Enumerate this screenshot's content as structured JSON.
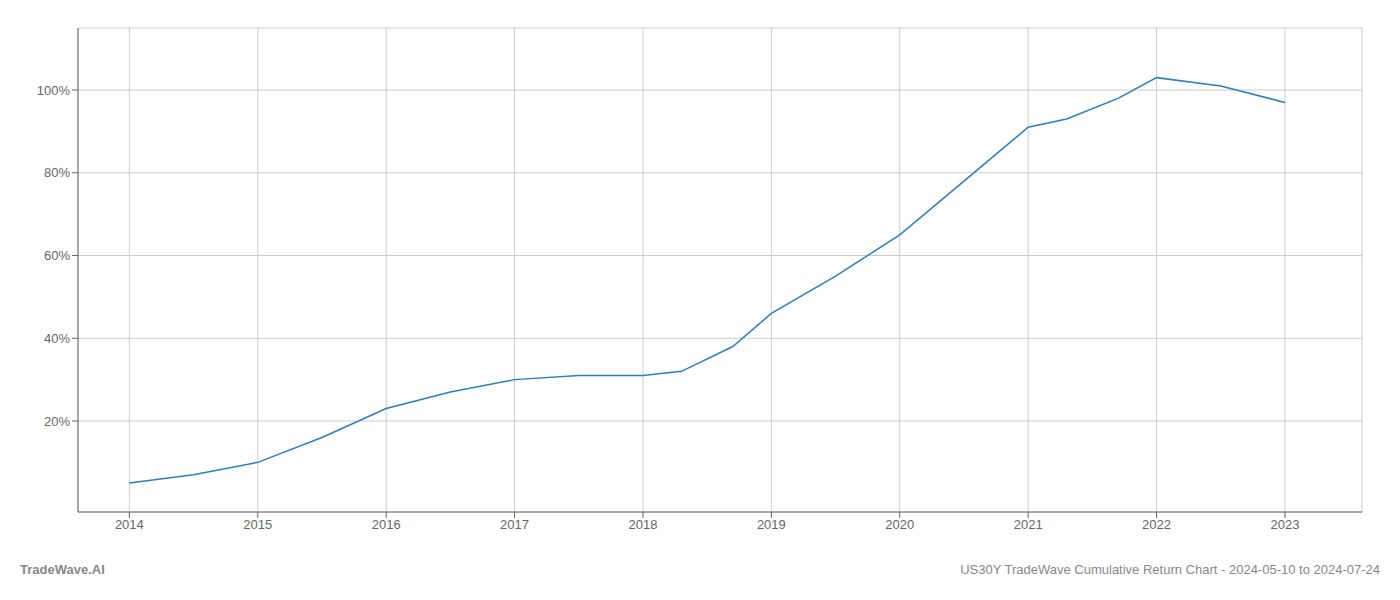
{
  "chart_data": {
    "type": "line",
    "x": [
      2014,
      2014.5,
      2015,
      2015.5,
      2016,
      2016.5,
      2017,
      2017.5,
      2018,
      2018.3,
      2018.7,
      2019,
      2019.5,
      2020,
      2020.5,
      2021,
      2021.3,
      2021.7,
      2022,
      2022.5,
      2023
    ],
    "values": [
      5,
      7,
      10,
      16,
      23,
      27,
      30,
      31,
      31,
      32,
      38,
      46,
      55,
      65,
      78,
      91,
      93,
      98,
      103,
      101,
      97
    ],
    "color": "#2a7fc1",
    "xlim": [
      2013.6,
      2023.6
    ],
    "ylim": [
      -2,
      115
    ],
    "xticks": [
      2014,
      2015,
      2016,
      2017,
      2018,
      2019,
      2020,
      2021,
      2022,
      2023
    ],
    "yticks": [
      {
        "value": 20,
        "label": "20%"
      },
      {
        "value": 40,
        "label": "40%"
      },
      {
        "value": 60,
        "label": "60%"
      },
      {
        "value": 80,
        "label": "80%"
      },
      {
        "value": 100,
        "label": "100%"
      }
    ],
    "grid": true,
    "annotations": [
      "TradeWave.AI",
      "US30Y TradeWave Cumulative Return Chart - 2024-05-10 to 2024-07-24"
    ]
  }
}
